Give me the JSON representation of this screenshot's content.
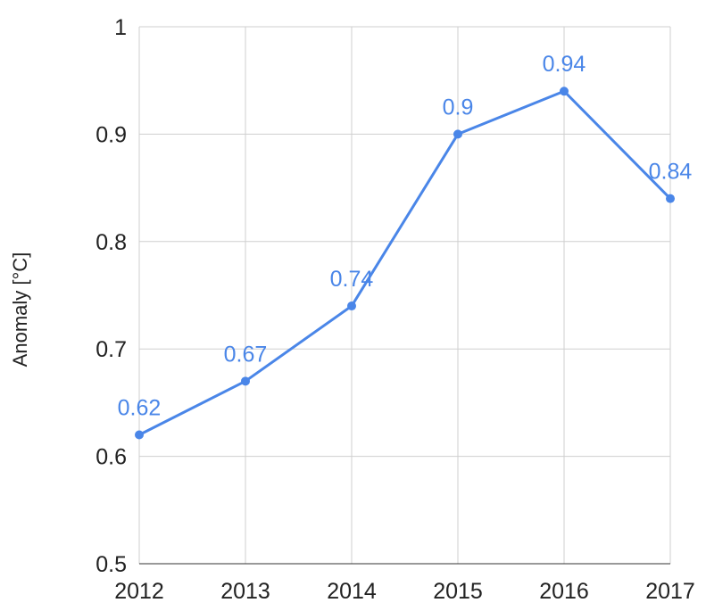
{
  "chart_data": {
    "type": "line",
    "title": "",
    "xlabel": "",
    "ylabel": "Anomaly [°C]",
    "categories": [
      "2012",
      "2013",
      "2014",
      "2015",
      "2016",
      "2017"
    ],
    "series": [
      {
        "values": [
          0.62,
          0.67,
          0.74,
          0.9,
          0.94,
          0.84
        ],
        "labels": [
          "0.62",
          "0.67",
          "0.74",
          "0.9",
          "0.94",
          "0.84"
        ],
        "color": "#4a86e8"
      }
    ],
    "ylim": [
      0.5,
      1
    ],
    "y_ticks": [
      0.5,
      0.6,
      0.7,
      0.8,
      0.9,
      1
    ],
    "y_tick_labels": [
      "0.5",
      "0.6",
      "0.7",
      "0.8",
      "0.9",
      "1"
    ],
    "grid": true,
    "legend": "none"
  }
}
